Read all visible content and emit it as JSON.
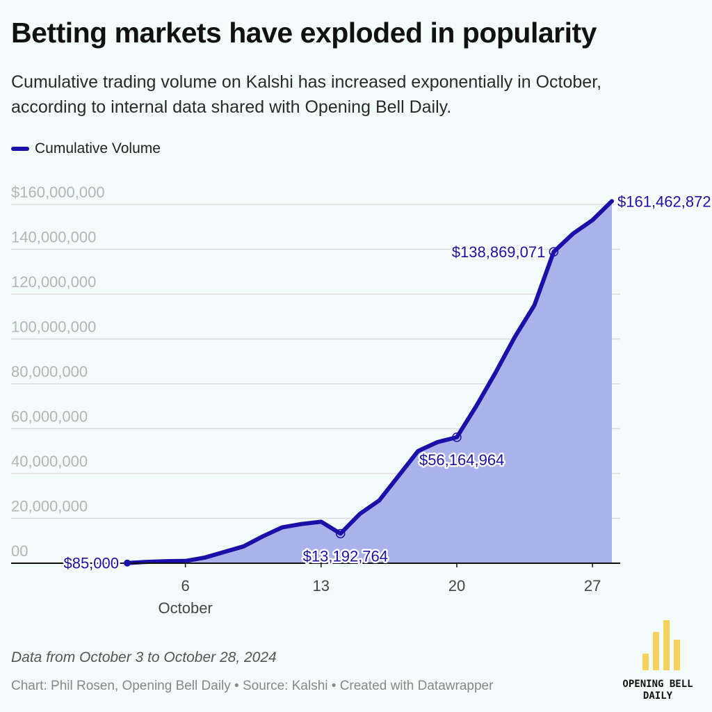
{
  "header": {
    "title": "Betting markets have exploded in popularity",
    "subtitle": "Cumulative trading volume on Kalshi has increased exponentially in October, according to internal data shared with Opening Bell Daily."
  },
  "footer": {
    "note": "Data from October 3 to October 28, 2024",
    "credit": "Chart: Phil Rosen, Opening Bell Daily • Source: Kalshi • Created with Datawrapper",
    "logo_line1": "OPENING BELL",
    "logo_line2": "DAILY"
  },
  "colors": {
    "line": "#1a0fa8",
    "area": "#a9b2ea",
    "logo": "#f7d25a"
  },
  "chart_data": {
    "type": "area",
    "title": "Betting markets have exploded in popularity",
    "ylim": [
      0,
      160000000
    ],
    "xlim": [
      3,
      28
    ],
    "grid": true,
    "legend_position": "top-left",
    "y_ticks": [
      {
        "value": 160000000,
        "label": "$160,000,000"
      },
      {
        "value": 140000000,
        "label": "140,000,000"
      },
      {
        "value": 120000000,
        "label": "120,000,000"
      },
      {
        "value": 100000000,
        "label": "100,000,000"
      },
      {
        "value": 80000000,
        "label": "80,000,000"
      },
      {
        "value": 60000000,
        "label": "60,000,000"
      },
      {
        "value": 40000000,
        "label": "40,000,000"
      },
      {
        "value": 20000000,
        "label": "20,000,000"
      },
      {
        "value": 0,
        "label": "00"
      }
    ],
    "x_ticks": [
      {
        "value": 6,
        "label": "6",
        "sublabel": "October"
      },
      {
        "value": 13,
        "label": "13",
        "sublabel": ""
      },
      {
        "value": 20,
        "label": "20",
        "sublabel": ""
      },
      {
        "value": 27,
        "label": "27",
        "sublabel": ""
      }
    ],
    "series": [
      {
        "name": "Cumulative Volume",
        "x": [
          3,
          4,
          5,
          6,
          7,
          8,
          9,
          10,
          11,
          12,
          13,
          14,
          15,
          16,
          17,
          18,
          19,
          20,
          21,
          22,
          23,
          24,
          25,
          26,
          27,
          28
        ],
        "values": [
          85000,
          600000,
          900000,
          1000000,
          2500000,
          5000000,
          7500000,
          12000000,
          16000000,
          17500000,
          18500000,
          13192764,
          22000000,
          28000000,
          39000000,
          50000000,
          54000000,
          56164964,
          70000000,
          85000000,
          101000000,
          115000000,
          138869071,
          147000000,
          153000000,
          161462872
        ]
      }
    ],
    "annotations": [
      {
        "x": 3,
        "y": 85000,
        "label": "$85,000",
        "dot": "filled",
        "side": "left"
      },
      {
        "x": 14,
        "y": 13192764,
        "label": "$13,192,764",
        "dot": "ring",
        "side": "below"
      },
      {
        "x": 20,
        "y": 56164964,
        "label": "$56,164,964",
        "dot": "ring",
        "side": "below"
      },
      {
        "x": 25,
        "y": 138869071,
        "label": "$138,869,071",
        "dot": "ring",
        "side": "left"
      },
      {
        "x": 28,
        "y": 161462872,
        "label": "$161,462,872",
        "dot": "none",
        "side": "right"
      }
    ]
  }
}
